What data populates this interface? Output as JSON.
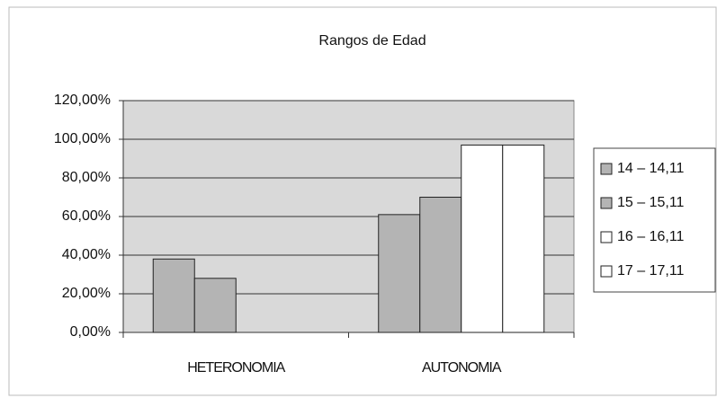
{
  "chart_data": {
    "type": "bar",
    "title": "Rangos de Edad",
    "categories": [
      "HETERONOMIA",
      "AUTONOMIA"
    ],
    "series": [
      {
        "name": "14 – 14,11",
        "color": "#b4b4b4",
        "values": [
          38,
          61
        ]
      },
      {
        "name": "15 – 15,11",
        "color": "#b4b4b4",
        "values": [
          28,
          70
        ]
      },
      {
        "name": "16 – 16,11",
        "color": "#ffffff",
        "values": [
          0,
          97
        ]
      },
      {
        "name": "17 – 17,11",
        "color": "#ffffff",
        "values": [
          0,
          97
        ]
      }
    ],
    "ylim": [
      0,
      120
    ],
    "yticks": [
      {
        "value": 0,
        "label": "0,00%"
      },
      {
        "value": 20,
        "label": "20,00%"
      },
      {
        "value": 40,
        "label": "40,00%"
      },
      {
        "value": 60,
        "label": "60,00%"
      },
      {
        "value": 80,
        "label": "80,00%"
      },
      {
        "value": 100,
        "label": "100,00%"
      },
      {
        "value": 120,
        "label": "120,00%"
      }
    ],
    "grid": true,
    "legend": "right"
  }
}
